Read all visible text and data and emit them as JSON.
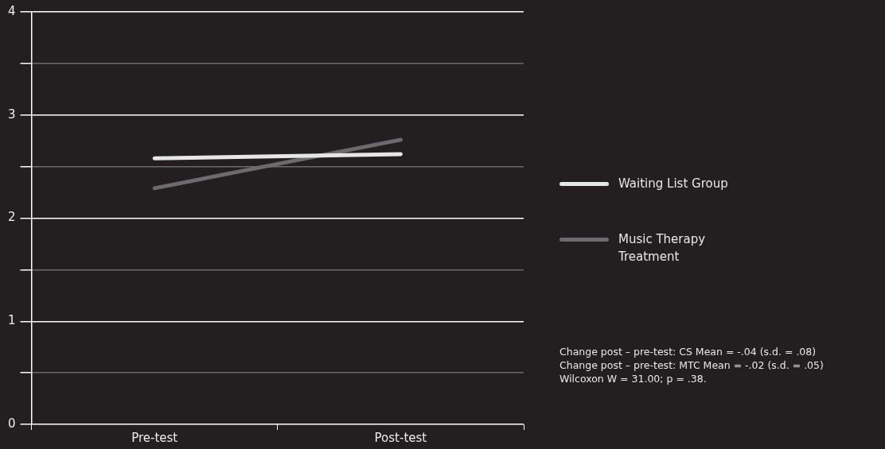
{
  "chart_data": {
    "type": "line",
    "categories": [
      "Pre-test",
      "Post-test"
    ],
    "series": [
      {
        "name": "Waiting List Group",
        "color": "#e6e6e6",
        "values": [
          2.58,
          2.62
        ]
      },
      {
        "name": "Music Therapy Treatment",
        "color": "#6b6b6d",
        "values": [
          2.29,
          2.76
        ]
      }
    ],
    "ylim": [
      0,
      4
    ],
    "yticks": [
      0,
      {
        "value": 0.5,
        "label": null
      },
      1,
      {
        "value": 1.5,
        "label": null
      },
      2,
      {
        "value": 2.5,
        "label": null
      },
      3,
      {
        "value": 3.5,
        "label": null
      },
      4
    ],
    "grid": "y",
    "legend": "right",
    "marker": "none",
    "line_style": "solid",
    "annotations": [
      "Change post – pre-test: CS Mean = -.04 (s.d. = .08)",
      "Change post – pre-test: MTC Mean = -.02 (s.d. = .05)",
      "Wilcoxon W = 31.00; p = .38."
    ]
  }
}
